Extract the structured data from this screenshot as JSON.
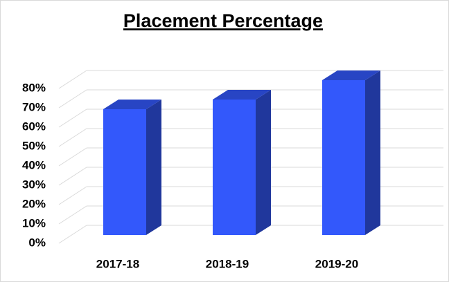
{
  "chart_data": {
    "type": "bar3d",
    "title": "Placement Percentage",
    "categories": [
      "2017-18",
      "2018-19",
      "2019-20"
    ],
    "values": [
      65,
      70,
      80
    ],
    "color": "#3358fb",
    "ylim": [
      0,
      90
    ],
    "yticks": [
      {
        "value": 0,
        "label": "0%"
      },
      {
        "value": 10,
        "label": "10%"
      },
      {
        "value": 20,
        "label": "20%"
      },
      {
        "value": 30,
        "label": "30%"
      },
      {
        "value": 40,
        "label": "40%"
      },
      {
        "value": 50,
        "label": "50%"
      },
      {
        "value": 60,
        "label": "60%"
      },
      {
        "value": 70,
        "label": "70%"
      },
      {
        "value": 80,
        "label": "80%"
      }
    ],
    "grid": true
  }
}
